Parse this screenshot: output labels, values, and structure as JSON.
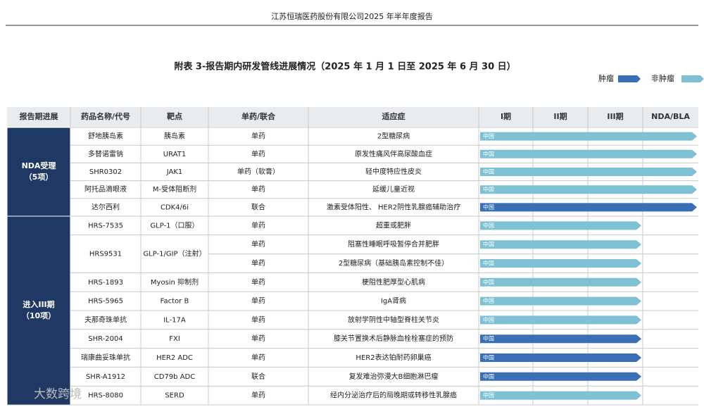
{
  "header": {
    "company": "江苏恒瑞医药股份有限公司2025 年半年度报告"
  },
  "title": "附表 3-报告期内研发管线进展情况（2025 年 1 月 1 日至 2025 年 6 月 30 日）",
  "legend": {
    "tumor": "肿瘤",
    "non_tumor": "非肿瘤"
  },
  "table": {
    "columns": [
      "报告期进展",
      "药品名称/代号",
      "靶点",
      "单药/联合",
      "适应症",
      "I期",
      "II期",
      "III期",
      "NDA/BLA"
    ],
    "groups": [
      {
        "label": "NDA受理",
        "count": "（5项）",
        "drugs": [
          {
            "name": "舒地胰岛素",
            "target": "胰岛素",
            "indications": [
              {
                "mode": "单药",
                "indication": "2型糖尿病",
                "region": "中国"
              }
            ]
          },
          {
            "name": "多替诺雷钠",
            "target": "URAT1",
            "indications": [
              {
                "mode": "单药",
                "indication": "原发性痛风伴高尿酸血症",
                "region": "中国"
              }
            ]
          },
          {
            "name": "SHR0302",
            "target": "JAK1",
            "indications": [
              {
                "mode": "单药（软膏）",
                "indication": "轻中度特应性皮炎",
                "region": "中国"
              }
            ]
          },
          {
            "name": "阿托品滴眼液",
            "target": "M-受体阻断剂",
            "indications": [
              {
                "mode": "单药",
                "indication": "延缓儿童近视",
                "region": "中国"
              }
            ]
          },
          {
            "name": "达尔西利",
            "target": "CDK4/6i",
            "indications": [
              {
                "mode": "联合",
                "indication": "激素受体阳性、 HER2阴性乳腺癌辅助治疗",
                "region": "中国"
              }
            ]
          }
        ]
      },
      {
        "label": "进入III期",
        "count": "（10项）",
        "drugs": [
          {
            "name": "HRS-7535",
            "target": "GLP-1（口服）",
            "indications": [
              {
                "mode": "单药",
                "indication": "超重或肥胖",
                "region": "中国"
              }
            ]
          },
          {
            "name": "HRS9531",
            "target": "GLP-1/GIP（注射）",
            "indications": [
              {
                "mode": "单药",
                "indication": "阻塞性睡眠呼吸暂停合并肥胖",
                "region": "中国"
              },
              {
                "mode": "单药",
                "indication": "2型糖尿病（基础胰岛素控制不佳）",
                "region": "中国"
              }
            ]
          },
          {
            "name": "HRS-1893",
            "target": "Myosin 抑制剂",
            "indications": [
              {
                "mode": "单药",
                "indication": "梗阻性肥厚型心肌病",
                "region": "中国"
              }
            ]
          },
          {
            "name": "HRS-5965",
            "target": "Factor B",
            "indications": [
              {
                "mode": "单药",
                "indication": "IgA肾病",
                "region": "中国"
              }
            ]
          },
          {
            "name": "夫那奇珠单抗",
            "target": "IL-17A",
            "indications": [
              {
                "mode": "单药",
                "indication": "放射学阴性中轴型脊柱关节炎",
                "region": "中国"
              }
            ]
          },
          {
            "name": "SHR-2004",
            "target": "FXI",
            "indications": [
              {
                "mode": "单药",
                "indication": "膝关节置换术后静脉血栓栓塞症的预防",
                "region": "中国"
              }
            ]
          },
          {
            "name": "瑞康曲妥珠单抗",
            "target": "HER2 ADC",
            "indications": [
              {
                "mode": "单药",
                "indication": "HER2表达铂耐药卵巢癌",
                "region": "中国"
              }
            ]
          },
          {
            "name": "SHR-A1912",
            "target": "CD79b ADC",
            "indications": [
              {
                "mode": "联合",
                "indication": "复发难治弥漫大B细胞淋巴瘤",
                "region": "中国"
              }
            ]
          },
          {
            "name": "HRS-8080",
            "target": "SERD",
            "indications": [
              {
                "mode": "单药",
                "indication": "经内分泌治疗后的局晚期或转移性乳腺癌",
                "region": "中国"
              }
            ]
          }
        ]
      }
    ]
  },
  "watermark": "大数跨境"
}
